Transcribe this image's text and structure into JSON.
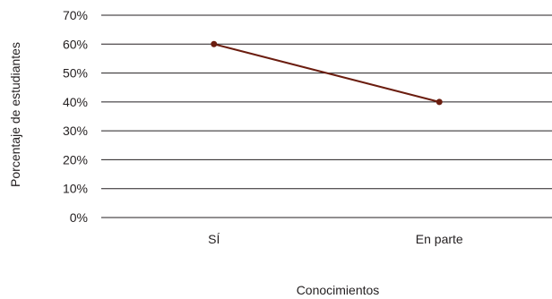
{
  "chart_data": {
    "type": "line",
    "title": "",
    "xlabel": "Conocimientos",
    "ylabel": "Porcentaje de estudiantes",
    "categories": [
      "SÍ",
      "En parte"
    ],
    "series": [
      {
        "values": [
          60,
          40
        ],
        "color": "#6b1d0f"
      }
    ],
    "ylim": [
      0,
      70
    ],
    "yticks": [
      0,
      10,
      20,
      30,
      40,
      50,
      60,
      70
    ],
    "ytick_labels": [
      "0%",
      "10%",
      "20%",
      "30%",
      "40%",
      "50%",
      "60%",
      "70%"
    ],
    "grid": true,
    "legend": "none",
    "colors": {
      "grid": "#231f20",
      "line": "#6b1d0f"
    }
  }
}
